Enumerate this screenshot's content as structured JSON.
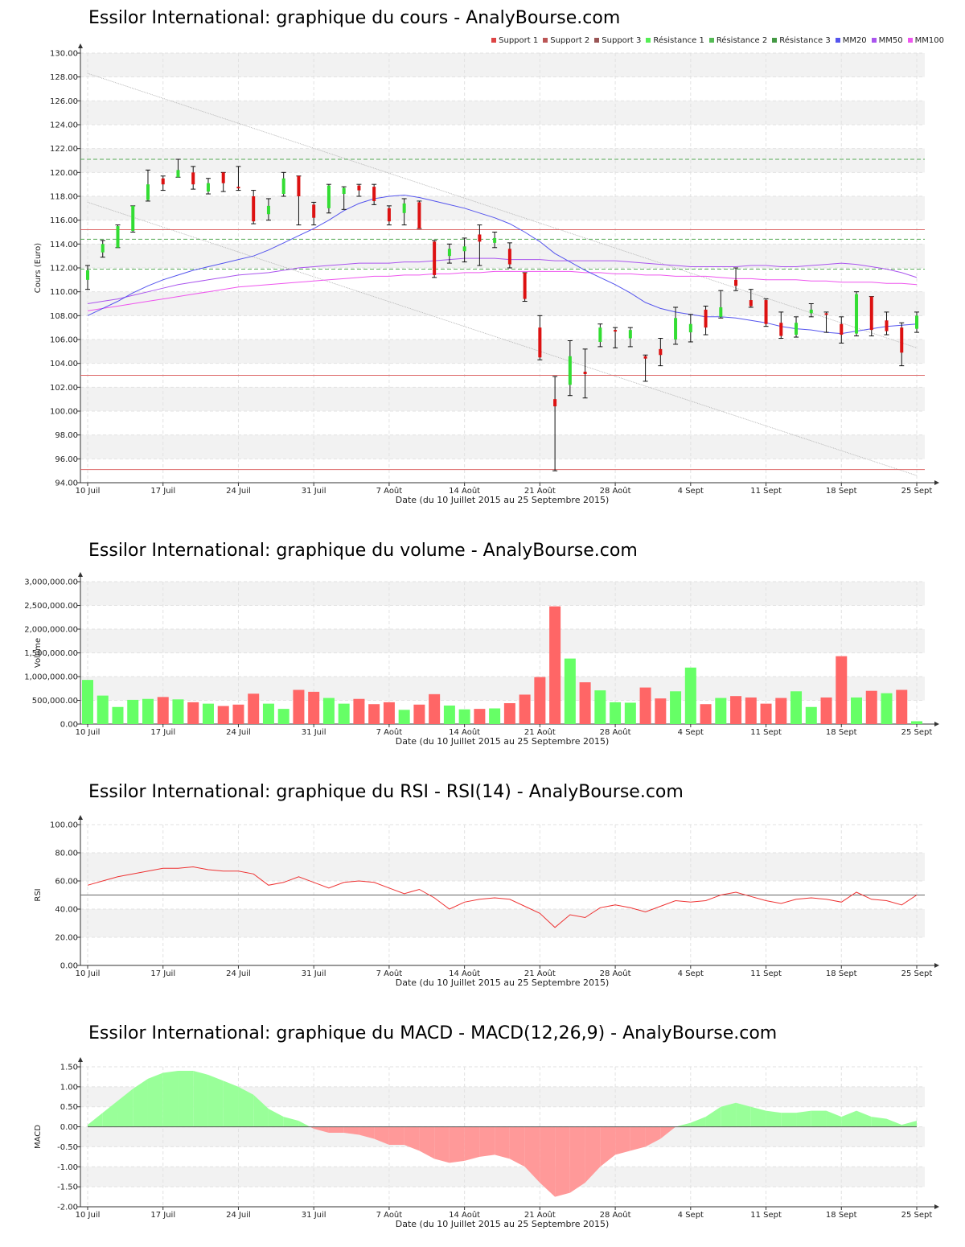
{
  "x_label": "Date (du 10 Juillet 2015 au 25 Septembre 2015)",
  "x_tick_labels": [
    "10 Juil",
    "17 Juil",
    "24 Juil",
    "31 Juil",
    "7 Août",
    "14 Août",
    "21 Août",
    "28 Août",
    "4 Sept",
    "11 Sept",
    "18 Sept",
    "25 Sept"
  ],
  "colors": {
    "up": "#33dd33",
    "down": "#dd1111",
    "vol_up": "#66ff66",
    "vol_down": "#ff6666",
    "mm20": "#5555ee",
    "mm50": "#aa55ee",
    "mm100": "#ee55ee",
    "support": "#dd6666",
    "resistance": "#55aa55",
    "rsi": "#ee3333",
    "macd_pos": "#99ff99",
    "macd_neg": "#ff9999"
  },
  "legend": [
    {
      "label": "Support 1",
      "color": "#dd4444"
    },
    {
      "label": "Support 2",
      "color": "#bb5555"
    },
    {
      "label": "Support 3",
      "color": "#995555"
    },
    {
      "label": "Résistance 1",
      "color": "#55ee55"
    },
    {
      "label": "Résistance 2",
      "color": "#55bb55"
    },
    {
      "label": "Résistance 3",
      "color": "#449944"
    },
    {
      "label": "MM20",
      "color": "#5555ee"
    },
    {
      "label": "MM50",
      "color": "#aa55ee"
    },
    {
      "label": "MM100",
      "color": "#ee55ee"
    }
  ],
  "chart_data": [
    {
      "type": "candlestick",
      "title": "Essilor International: graphique du cours - AnalyBourse.com",
      "ylabel": "Cours (Euro)",
      "ylim": [
        94,
        130
      ],
      "y_tick_labels": [
        "94.00",
        "96.00",
        "98.00",
        "100.00",
        "102.00",
        "104.00",
        "106.00",
        "108.00",
        "110.00",
        "112.00",
        "114.00",
        "116.00",
        "118.00",
        "120.00",
        "122.00",
        "124.00",
        "126.00",
        "128.00",
        "130.00"
      ],
      "candles": [
        {
          "o": 111.0,
          "c": 111.8,
          "h": 112.2,
          "l": 110.2
        },
        {
          "o": 113.3,
          "c": 114.0,
          "h": 114.3,
          "l": 112.9
        },
        {
          "o": 113.7,
          "c": 115.5,
          "h": 115.6,
          "l": 113.7
        },
        {
          "o": 115.1,
          "c": 117.2,
          "h": 117.2,
          "l": 115.0
        },
        {
          "o": 117.7,
          "c": 119.0,
          "h": 120.2,
          "l": 117.6
        },
        {
          "o": 119.5,
          "c": 119.0,
          "h": 119.7,
          "l": 118.5
        },
        {
          "o": 119.6,
          "c": 120.2,
          "h": 121.1,
          "l": 119.6
        },
        {
          "o": 120.0,
          "c": 119.0,
          "h": 120.5,
          "l": 118.6
        },
        {
          "o": 118.4,
          "c": 119.1,
          "h": 119.5,
          "l": 118.2
        },
        {
          "o": 120.0,
          "c": 119.1,
          "h": 120.0,
          "l": 118.4
        },
        {
          "o": 118.8,
          "c": 118.7,
          "h": 120.5,
          "l": 118.5
        },
        {
          "o": 118.0,
          "c": 115.9,
          "h": 118.5,
          "l": 115.7
        },
        {
          "o": 116.5,
          "c": 117.2,
          "h": 117.8,
          "l": 116.0
        },
        {
          "o": 118.2,
          "c": 119.5,
          "h": 120.0,
          "l": 118.0
        },
        {
          "o": 119.7,
          "c": 118.0,
          "h": 119.7,
          "l": 115.6
        },
        {
          "o": 117.3,
          "c": 116.2,
          "h": 117.5,
          "l": 115.6
        },
        {
          "o": 117.0,
          "c": 118.9,
          "h": 119.0,
          "l": 116.6
        },
        {
          "o": 118.2,
          "c": 118.7,
          "h": 118.8,
          "l": 116.9
        },
        {
          "o": 118.9,
          "c": 118.5,
          "h": 119.0,
          "l": 118.0
        },
        {
          "o": 118.8,
          "c": 117.6,
          "h": 119.0,
          "l": 117.3
        },
        {
          "o": 117.0,
          "c": 115.9,
          "h": 117.2,
          "l": 115.6
        },
        {
          "o": 116.6,
          "c": 117.4,
          "h": 117.8,
          "l": 115.6
        },
        {
          "o": 117.5,
          "c": 115.3,
          "h": 117.6,
          "l": 115.3
        },
        {
          "o": 114.2,
          "c": 111.4,
          "h": 114.3,
          "l": 111.2
        },
        {
          "o": 113.0,
          "c": 113.6,
          "h": 114.0,
          "l": 112.4
        },
        {
          "o": 113.4,
          "c": 113.8,
          "h": 114.5,
          "l": 112.5
        },
        {
          "o": 114.8,
          "c": 114.2,
          "h": 115.6,
          "l": 112.2
        },
        {
          "o": 114.1,
          "c": 114.5,
          "h": 115.0,
          "l": 113.7
        },
        {
          "o": 113.6,
          "c": 112.3,
          "h": 114.1,
          "l": 112.0
        },
        {
          "o": 111.6,
          "c": 109.4,
          "h": 111.6,
          "l": 109.2
        },
        {
          "o": 107.0,
          "c": 104.5,
          "h": 108.0,
          "l": 104.3
        },
        {
          "o": 101.0,
          "c": 100.4,
          "h": 102.9,
          "l": 95.0
        },
        {
          "o": 102.2,
          "c": 104.6,
          "h": 105.9,
          "l": 101.3
        },
        {
          "o": 103.3,
          "c": 103.1,
          "h": 105.2,
          "l": 101.1
        },
        {
          "o": 105.8,
          "c": 107.0,
          "h": 107.3,
          "l": 105.4
        },
        {
          "o": 106.8,
          "c": 106.7,
          "h": 107.0,
          "l": 105.3
        },
        {
          "o": 106.1,
          "c": 106.8,
          "h": 107.0,
          "l": 105.4
        },
        {
          "o": 104.6,
          "c": 104.4,
          "h": 104.7,
          "l": 102.5
        },
        {
          "o": 105.2,
          "c": 104.7,
          "h": 106.1,
          "l": 103.8
        },
        {
          "o": 106.0,
          "c": 107.8,
          "h": 108.7,
          "l": 105.6
        },
        {
          "o": 106.6,
          "c": 107.3,
          "h": 108.1,
          "l": 105.8
        },
        {
          "o": 108.5,
          "c": 107.0,
          "h": 108.8,
          "l": 106.4
        },
        {
          "o": 107.9,
          "c": 108.7,
          "h": 110.1,
          "l": 107.8
        },
        {
          "o": 111.0,
          "c": 110.5,
          "h": 112.0,
          "l": 110.1
        },
        {
          "o": 109.3,
          "c": 108.8,
          "h": 110.2,
          "l": 108.7
        },
        {
          "o": 109.3,
          "c": 107.3,
          "h": 109.4,
          "l": 107.1
        },
        {
          "o": 107.4,
          "c": 106.3,
          "h": 108.3,
          "l": 106.1
        },
        {
          "o": 106.4,
          "c": 107.4,
          "h": 107.9,
          "l": 106.2
        },
        {
          "o": 108.2,
          "c": 108.5,
          "h": 109.0,
          "l": 107.9
        },
        {
          "o": 108.2,
          "c": 108.1,
          "h": 108.3,
          "l": 106.6
        },
        {
          "o": 107.3,
          "c": 106.4,
          "h": 107.9,
          "l": 105.7
        },
        {
          "o": 106.5,
          "c": 109.8,
          "h": 110.0,
          "l": 106.3
        },
        {
          "o": 109.6,
          "c": 106.8,
          "h": 109.6,
          "l": 106.3
        },
        {
          "o": 107.6,
          "c": 106.7,
          "h": 108.3,
          "l": 106.4
        },
        {
          "o": 107.0,
          "c": 104.9,
          "h": 107.4,
          "l": 103.8
        },
        {
          "o": 106.9,
          "c": 108.0,
          "h": 108.3,
          "l": 106.6
        }
      ],
      "moving_averages": {
        "MM20": [
          108.0,
          108.6,
          109.2,
          109.9,
          110.5,
          111.0,
          111.4,
          111.8,
          112.1,
          112.4,
          112.7,
          113.0,
          113.5,
          114.1,
          114.7,
          115.3,
          116.0,
          116.8,
          117.4,
          117.8,
          118.0,
          118.1,
          117.9,
          117.6,
          117.3,
          117.0,
          116.6,
          116.2,
          115.7,
          115.0,
          114.2,
          113.2,
          112.5,
          111.8,
          111.2,
          110.6,
          109.9,
          109.1,
          108.6,
          108.3,
          108.1,
          107.9,
          107.9,
          107.8,
          107.6,
          107.4,
          107.1,
          106.9,
          106.8,
          106.6,
          106.5,
          106.7,
          106.9,
          107.1,
          107.2,
          107.3
        ],
        "MM50": [
          109.0,
          109.2,
          109.4,
          109.7,
          110.0,
          110.3,
          110.6,
          110.8,
          111.0,
          111.2,
          111.4,
          111.5,
          111.6,
          111.8,
          112.0,
          112.1,
          112.2,
          112.3,
          112.4,
          112.4,
          112.4,
          112.5,
          112.5,
          112.6,
          112.7,
          112.8,
          112.8,
          112.8,
          112.7,
          112.7,
          112.7,
          112.6,
          112.6,
          112.6,
          112.6,
          112.6,
          112.5,
          112.4,
          112.3,
          112.2,
          112.1,
          112.1,
          112.1,
          112.1,
          112.2,
          112.2,
          112.1,
          112.1,
          112.2,
          112.3,
          112.4,
          112.3,
          112.1,
          111.9,
          111.6,
          111.2
        ],
        "MM100": [
          108.4,
          108.6,
          108.8,
          109.0,
          109.2,
          109.4,
          109.6,
          109.8,
          110.0,
          110.2,
          110.4,
          110.5,
          110.6,
          110.7,
          110.8,
          110.9,
          111.0,
          111.1,
          111.2,
          111.3,
          111.3,
          111.4,
          111.4,
          111.5,
          111.5,
          111.6,
          111.6,
          111.7,
          111.7,
          111.7,
          111.7,
          111.7,
          111.7,
          111.6,
          111.6,
          111.5,
          111.5,
          111.4,
          111.4,
          111.3,
          111.3,
          111.3,
          111.2,
          111.1,
          111.1,
          111.0,
          111.0,
          111.0,
          110.9,
          110.9,
          110.8,
          110.8,
          110.8,
          110.7,
          110.7,
          110.6
        ]
      },
      "support": [
        115.2,
        103.0,
        95.1
      ],
      "resistance": [
        121.1,
        114.4,
        111.9
      ],
      "trendlines": [
        {
          "from": {
            "i": 0,
            "y": 128.3
          },
          "to": {
            "i": 55,
            "y": 105.3
          }
        },
        {
          "from": {
            "i": 0,
            "y": 117.5
          },
          "to": {
            "i": 55,
            "y": 94.6
          }
        }
      ]
    },
    {
      "type": "bar",
      "title": "Essilor International: graphique du volume - AnalyBourse.com",
      "ylabel": "Volume",
      "ylim": [
        0,
        3000000
      ],
      "y_tick_labels": [
        "0.00",
        "500,000.00",
        "1,000,000.00",
        "1,500,000.00",
        "2,000,000.00",
        "2,500,000.00",
        "3,000,000.00"
      ],
      "values": [
        930000,
        600000,
        360000,
        510000,
        530000,
        570000,
        520000,
        460000,
        430000,
        380000,
        410000,
        640000,
        430000,
        320000,
        720000,
        680000,
        550000,
        430000,
        530000,
        420000,
        460000,
        300000,
        410000,
        630000,
        390000,
        310000,
        320000,
        330000,
        440000,
        620000,
        990000,
        2480000,
        1380000,
        880000,
        710000,
        460000,
        450000,
        770000,
        540000,
        690000,
        1190000,
        420000,
        550000,
        590000,
        560000,
        430000,
        550000,
        690000,
        360000,
        560000,
        1430000,
        560000,
        700000,
        650000,
        720000,
        60000
      ],
      "up": [
        1,
        1,
        1,
        1,
        1,
        0,
        1,
        0,
        1,
        0,
        0,
        0,
        1,
        1,
        0,
        0,
        1,
        1,
        0,
        0,
        0,
        1,
        0,
        0,
        1,
        1,
        0,
        1,
        0,
        0,
        0,
        0,
        1,
        0,
        1,
        1,
        1,
        0,
        0,
        1,
        1,
        0,
        1,
        0,
        0,
        0,
        0,
        1,
        1,
        0,
        0,
        1,
        0,
        1,
        0,
        1
      ]
    },
    {
      "type": "line",
      "title": "Essilor International: graphique du RSI - RSI(14) - AnalyBourse.com",
      "ylabel": "RSI",
      "ylim": [
        0,
        100
      ],
      "reference_line": 50,
      "y_tick_labels": [
        "0.00",
        "20.00",
        "40.00",
        "60.00",
        "80.00",
        "100.00"
      ],
      "values": [
        57,
        60,
        63,
        65,
        67,
        69,
        69,
        70,
        68,
        67,
        67,
        65,
        57,
        59,
        63,
        59,
        55,
        59,
        60,
        59,
        55,
        51,
        54,
        48,
        40,
        45,
        47,
        48,
        47,
        42,
        37,
        27,
        36,
        34,
        41,
        43,
        41,
        38,
        42,
        46,
        45,
        46,
        50,
        52,
        49,
        46,
        44,
        47,
        48,
        47,
        45,
        52,
        47,
        46,
        43,
        50
      ]
    },
    {
      "type": "area",
      "title": "Essilor International: graphique du MACD - MACD(12,26,9) - AnalyBourse.com",
      "ylabel": "MACD",
      "ylim": [
        -2.0,
        1.5
      ],
      "y_tick_labels": [
        "-2.00",
        "-1.50",
        "-1.00",
        "-0.50",
        "0.00",
        "0.50",
        "1.00",
        "1.50"
      ],
      "values": [
        0.05,
        0.35,
        0.65,
        0.95,
        1.2,
        1.35,
        1.4,
        1.4,
        1.3,
        1.15,
        1.0,
        0.8,
        0.45,
        0.25,
        0.15,
        -0.05,
        -0.15,
        -0.15,
        -0.2,
        -0.3,
        -0.45,
        -0.45,
        -0.6,
        -0.8,
        -0.9,
        -0.85,
        -0.75,
        -0.7,
        -0.8,
        -1.0,
        -1.4,
        -1.75,
        -1.65,
        -1.4,
        -1.0,
        -0.7,
        -0.6,
        -0.5,
        -0.3,
        0.0,
        0.1,
        0.25,
        0.5,
        0.6,
        0.5,
        0.4,
        0.35,
        0.35,
        0.4,
        0.4,
        0.25,
        0.4,
        0.25,
        0.2,
        0.05,
        0.15
      ]
    }
  ]
}
